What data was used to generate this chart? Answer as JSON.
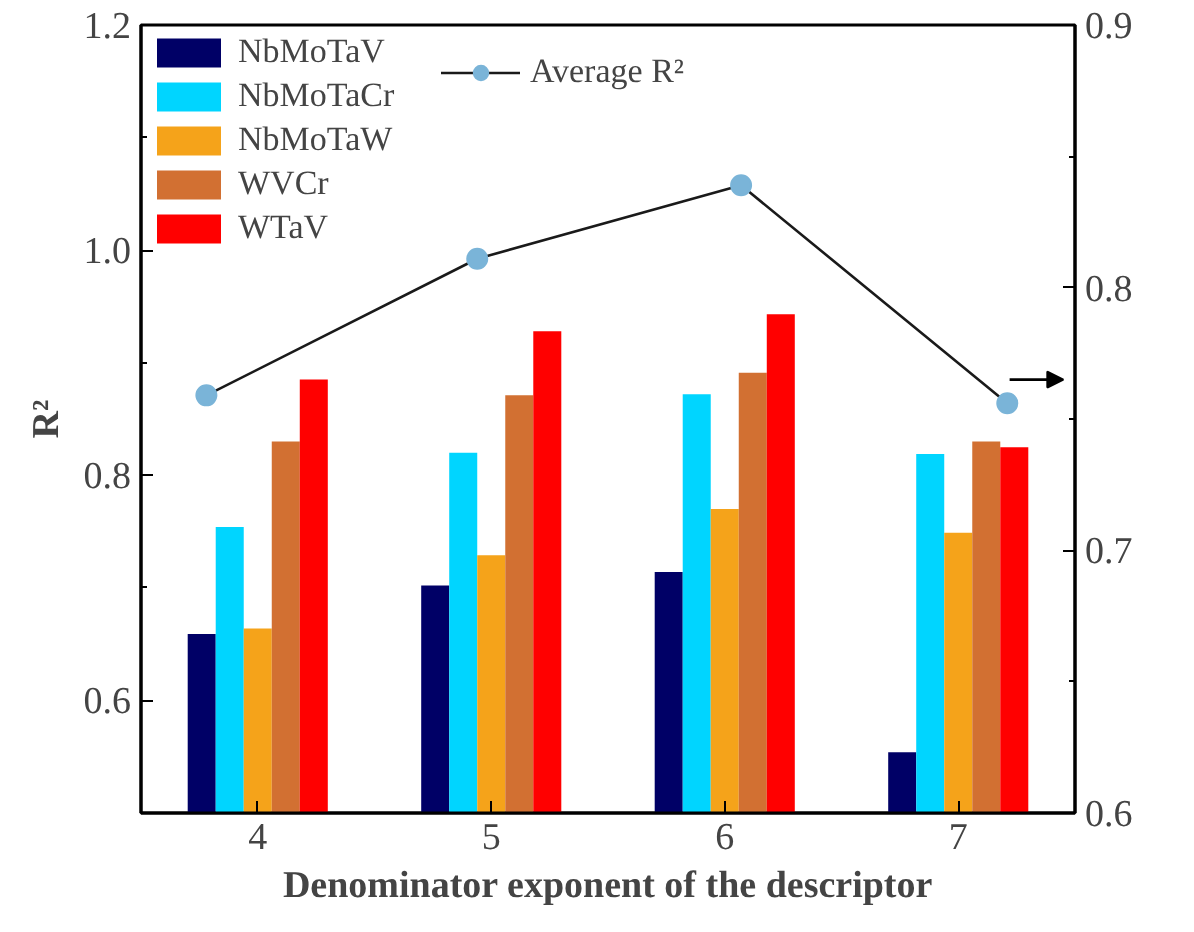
{
  "chart_data": {
    "type": "bar",
    "xlabel": "Denominator exponent of the descriptor",
    "ylabel": "R²",
    "x": [
      4,
      5,
      6,
      7
    ],
    "xlim": [
      3.5,
      7.5
    ],
    "xticks": [
      4,
      5,
      6,
      7
    ],
    "ylim": [
      0.5,
      1.2
    ],
    "yticks": [
      0.6,
      0.8,
      {
        "value": 1.0,
        "label": "1.0"
      },
      1.2
    ],
    "y2lim": [
      0.6,
      0.9
    ],
    "y2ticks": [
      0.6,
      0.7,
      0.8,
      0.9
    ],
    "grid": false,
    "legend": "top left",
    "series": [
      {
        "name": "NbMoTaV",
        "color": "#000066",
        "values": [
          0.659,
          0.702,
          0.714,
          0.554
        ]
      },
      {
        "name": "NbMoTaCr",
        "color": "#00d5ff",
        "values": [
          0.754,
          0.82,
          0.872,
          0.819
        ]
      },
      {
        "name": "NbMoTaW",
        "color": "#f5a31a",
        "values": [
          0.664,
          0.729,
          0.77,
          0.749
        ]
      },
      {
        "name": "WVCr",
        "color": "#d27032",
        "values": [
          0.83,
          0.871,
          0.891,
          0.83
        ]
      },
      {
        "name": "WTaV",
        "color": "#ff0000",
        "values": [
          0.885,
          0.928,
          0.943,
          0.825
        ]
      },
      {
        "name": "Average R²",
        "type": "line",
        "axis": "y2",
        "marker": "circle",
        "color": "#7ab4d8",
        "x": [
          3.78,
          4.94,
          6.07,
          7.21
        ],
        "values": [
          0.759,
          0.811,
          0.839,
          0.756
        ]
      }
    ]
  }
}
